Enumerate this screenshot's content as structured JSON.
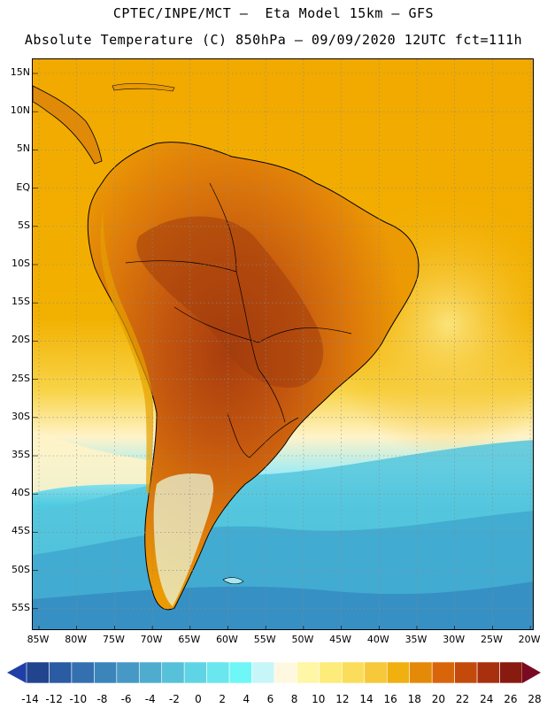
{
  "header": {
    "title_line1": "CPTEC/INPE/MCT –  Eta Model 15km – GFS",
    "title_line2": "Absolute Temperature (C) 850hPa – 09/09/2020 12UTC fct=111h"
  },
  "map": {
    "region": "South America",
    "lat_labels": [
      "15N",
      "10N",
      "5N",
      "EQ",
      "5S",
      "10S",
      "15S",
      "20S",
      "25S",
      "30S",
      "35S",
      "40S",
      "45S",
      "50S",
      "55S"
    ],
    "lon_labels": [
      "85W",
      "80W",
      "75W",
      "70W",
      "65W",
      "60W",
      "55W",
      "50W",
      "45W",
      "40W",
      "35W",
      "30W",
      "25W",
      "20W"
    ],
    "colors": {
      "ocean_warm": "#f2a900",
      "land_hot": "#c25510",
      "land_very_hot": "#a13c0c",
      "subtropical": "#f7d23b",
      "cold_ocean": "#3fb3d2"
    }
  },
  "colorbar": {
    "labels": [
      "-14",
      "-12",
      "-10",
      "-8",
      "-6",
      "-4",
      "-2",
      "0",
      "2",
      "4",
      "6",
      "8",
      "10",
      "12",
      "14",
      "16",
      "18",
      "20",
      "22",
      "24",
      "26",
      "28"
    ],
    "under_color": "#1f3fa6",
    "over_color": "#7a0a21",
    "colors": [
      "#22448f",
      "#2a5ba3",
      "#3470b0",
      "#3c85bb",
      "#4699c4",
      "#4faccf",
      "#58c1da",
      "#5fd4e4",
      "#69e6ee",
      "#6ff6f6",
      "#c7f6f9",
      "#fff8e0",
      "#fff6a6",
      "#fdeb7a",
      "#fadd5a",
      "#f6c83a",
      "#f0b010",
      "#e48a08",
      "#d9650a",
      "#c44a0c",
      "#a8300e",
      "#881a10"
    ]
  }
}
